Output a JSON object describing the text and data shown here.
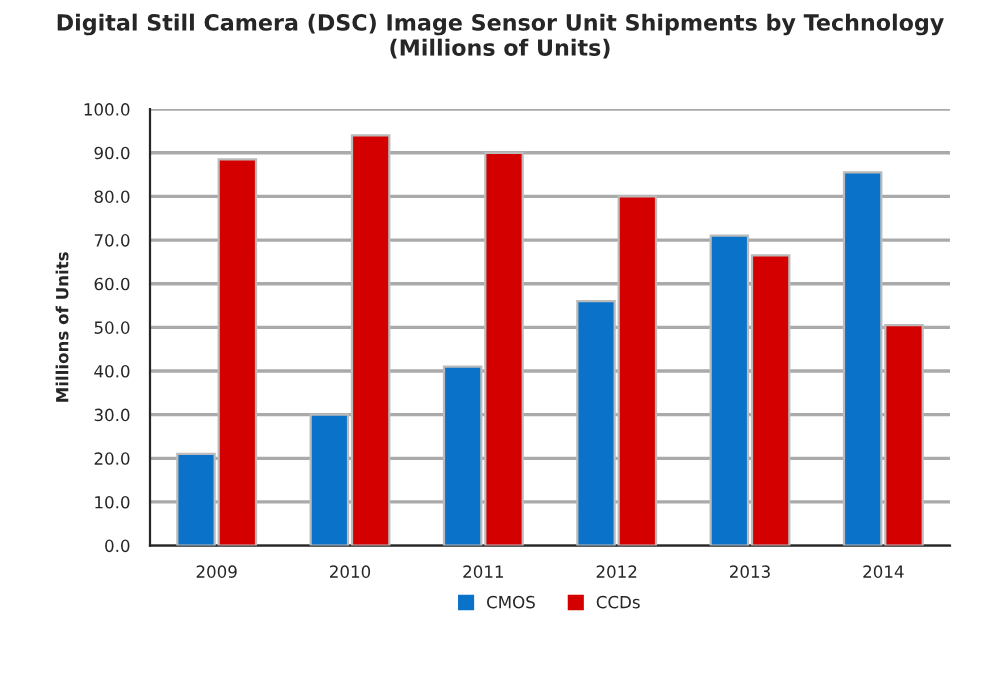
{
  "chart_data": {
    "type": "bar",
    "title": "Digital Still Camera (DSC) Image Sensor Unit Shipments by Technology\n(Millions of Units)",
    "ylabel": "Millions of Units",
    "categories": [
      "2009",
      "2010",
      "2011",
      "2012",
      "2013",
      "2014"
    ],
    "series": [
      {
        "name": "CMOS",
        "color": "#0a72c8",
        "values": [
          21,
          30,
          41,
          56,
          71,
          85.5
        ]
      },
      {
        "name": "CCDs",
        "color": "#d40000",
        "values": [
          88.5,
          94,
          90,
          80,
          66.5,
          50.5
        ]
      }
    ],
    "ylim": [
      0,
      100
    ],
    "yticks": [
      {
        "value": 0,
        "label": "0.0"
      },
      {
        "value": 10,
        "label": "10.0"
      },
      {
        "value": 20,
        "label": "20.0"
      },
      {
        "value": 30,
        "label": "30.0"
      },
      {
        "value": 40,
        "label": "40.0"
      },
      {
        "value": 50,
        "label": "50.0"
      },
      {
        "value": 60,
        "label": "60.0"
      },
      {
        "value": 70,
        "label": "70.0"
      },
      {
        "value": 80,
        "label": "80.0"
      },
      {
        "value": 90,
        "label": "90.0"
      },
      {
        "value": 100,
        "label": "100.0"
      }
    ],
    "grid": "y",
    "legend": "bottom"
  }
}
